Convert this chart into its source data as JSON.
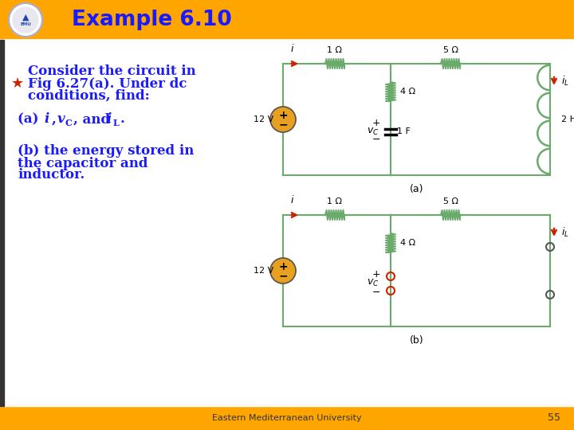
{
  "title": "Example 6.10",
  "title_color": "#1a1aff",
  "header_bg": "#FFA500",
  "footer_bg": "#FFA500",
  "footer_text": "Eastern Mediterranean University",
  "footer_number": "55",
  "main_bg": "#ffffff",
  "bullet_color": "#cc2200",
  "text_color": "#1a1aff",
  "left_bar_color": "#333333",
  "wire_color": "#6aaa6a",
  "circuit_line_color": "#5a9a5a",
  "resistor_color": "#5a9a5a",
  "arrow_color": "#cc2200"
}
